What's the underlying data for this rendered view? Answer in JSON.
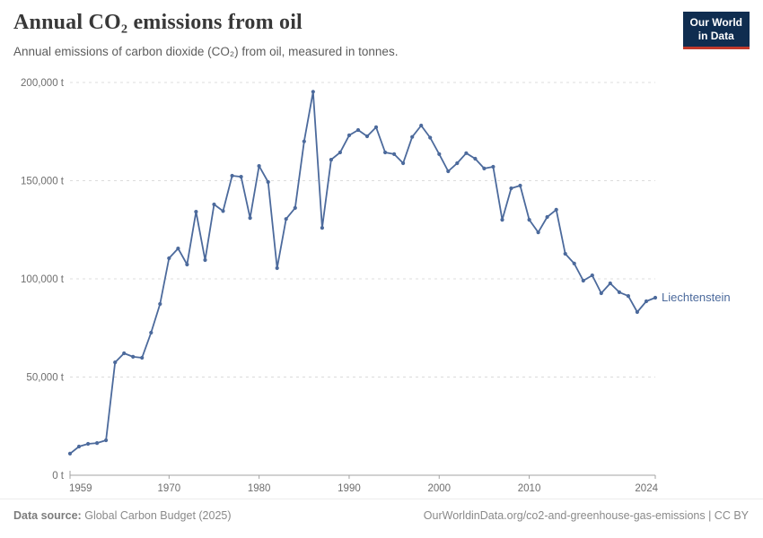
{
  "header": {
    "title": "Annual CO₂ emissions from oil",
    "subtitle": "Annual emissions of carbon dioxide (CO₂) from oil, measured in tonnes.",
    "logo": {
      "line1": "Our World",
      "line2": "in Data"
    }
  },
  "chart_data": {
    "type": "line",
    "title": "Annual CO₂ emissions from oil",
    "unit": "t",
    "entity_label": "Liechtenstein",
    "xlim": [
      1959,
      2024
    ],
    "ylim": [
      0,
      200000
    ],
    "grid": "horizontal-dashed",
    "legend_position": "end-of-line-label",
    "x_ticks": [
      {
        "value": 1959,
        "label": "1959"
      },
      {
        "value": 1970,
        "label": "1970"
      },
      {
        "value": 1980,
        "label": "1980"
      },
      {
        "value": 1990,
        "label": "1990"
      },
      {
        "value": 2000,
        "label": "2000"
      },
      {
        "value": 2010,
        "label": "2010"
      },
      {
        "value": 2024,
        "label": "2024"
      }
    ],
    "y_ticks": [
      {
        "value": 0,
        "label": "0 t"
      },
      {
        "value": 50000,
        "label": "50,000 t"
      },
      {
        "value": 100000,
        "label": "100,000 t"
      },
      {
        "value": 150000,
        "label": "150,000 t"
      },
      {
        "value": 200000,
        "label": "200,000 t"
      }
    ],
    "x": [
      1959,
      1960,
      1961,
      1962,
      1963,
      1964,
      1965,
      1966,
      1967,
      1968,
      1969,
      1970,
      1971,
      1972,
      1973,
      1974,
      1975,
      1976,
      1977,
      1978,
      1979,
      1980,
      1981,
      1982,
      1983,
      1984,
      1985,
      1986,
      1987,
      1988,
      1989,
      1990,
      1991,
      1992,
      1993,
      1994,
      1995,
      1996,
      1997,
      1998,
      1999,
      2000,
      2001,
      2002,
      2003,
      2004,
      2005,
      2006,
      2007,
      2008,
      2009,
      2010,
      2011,
      2012,
      2013,
      2014,
      2015,
      2016,
      2017,
      2018,
      2019,
      2020,
      2021,
      2022,
      2023,
      2024
    ],
    "series": [
      {
        "name": "Liechtenstein",
        "values": [
          11000,
          14600,
          16000,
          16400,
          17800,
          57500,
          62100,
          60300,
          59800,
          72600,
          87200,
          110500,
          115500,
          107300,
          134200,
          109600,
          137900,
          134500,
          152500,
          152000,
          131000,
          157500,
          149300,
          105500,
          130500,
          136100,
          170000,
          195300,
          126000,
          160700,
          164400,
          173100,
          175800,
          172600,
          177200,
          164400,
          163500,
          158900,
          172300,
          178100,
          171900,
          163500,
          154800,
          158900,
          164000,
          161200,
          156200,
          157100,
          130100,
          146100,
          147500,
          130100,
          123700,
          131500,
          135200,
          112800,
          107800,
          99100,
          101800,
          92700,
          97700,
          93200,
          91300,
          83100,
          88600,
          90400
        ]
      }
    ]
  },
  "footer": {
    "source_label": "Data source:",
    "source_value": "Global Carbon Budget (2025)",
    "link": "OurWorldinData.org/co2-and-greenhouse-gas-emissions | CC BY"
  },
  "colors": {
    "line": "#4C6A9C",
    "entity_label": "#4C6A9C",
    "grid": "#dcdcdc",
    "axis": "#a3a3a3",
    "tick_text": "#6e6e6e",
    "logo_bg": "#0F2D50",
    "logo_accent": "#C0392B"
  }
}
